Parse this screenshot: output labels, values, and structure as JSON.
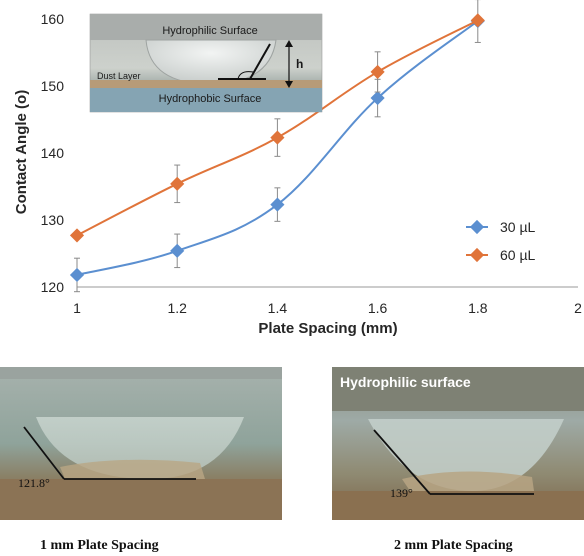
{
  "chart_data": {
    "type": "line",
    "xlabel": "Plate Spacing (mm)",
    "ylabel": "Contact Angle (o)",
    "xlim": [
      1,
      2
    ],
    "ylim": [
      120,
      160
    ],
    "x_ticks": [
      "1",
      "1.2",
      "1.4",
      "1.6",
      "1.8",
      "2"
    ],
    "y_ticks": [
      "120",
      "130",
      "140",
      "150",
      "160"
    ],
    "grid": false,
    "legend_position": "right",
    "series": [
      {
        "name": "30 µL",
        "color": "#5b8fd0",
        "marker": "diamond",
        "x": [
          1,
          1.2,
          1.4,
          1.6,
          1.8
        ],
        "y": [
          121.8,
          125.4,
          132.3,
          148.2,
          159.7
        ],
        "error": [
          2.5,
          2.5,
          2.5,
          2.8,
          3.2
        ]
      },
      {
        "name": "60 µL",
        "color": "#e0743a",
        "marker": "diamond",
        "x": [
          1,
          1.2,
          1.4,
          1.6,
          1.8
        ],
        "y": [
          127.7,
          135.4,
          142.3,
          152.1,
          159.8
        ],
        "error": [
          0,
          2.8,
          2.8,
          3.0,
          0
        ]
      }
    ]
  },
  "inset": {
    "hydrophilic_label": "Hydrophilic Surface",
    "hydrophobic_label": "Hydrophobic Surface",
    "dust_label": "Dust Layer",
    "height_label": "h"
  },
  "photos": [
    {
      "caption": "1 mm Plate Spacing",
      "angle_label": "121.8°",
      "overlay_label": ""
    },
    {
      "caption": "2 mm Plate Spacing",
      "angle_label": "139°",
      "overlay_label": "Hydrophilic surface"
    }
  ]
}
